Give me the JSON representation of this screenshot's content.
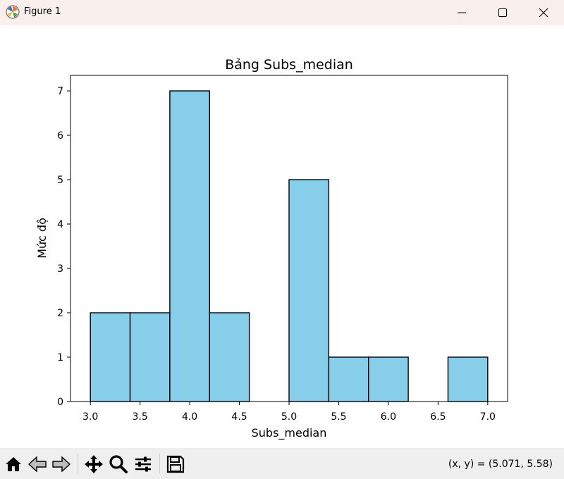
{
  "window": {
    "title": "Figure 1",
    "icons": [
      "matplotlib-logo-icon",
      "minimize-icon",
      "maximize-icon",
      "close-icon"
    ]
  },
  "toolbar": {
    "icons": [
      "home-icon",
      "back-arrow-icon",
      "forward-arrow-icon",
      "pan-icon",
      "zoom-icon",
      "configure-subplots-icon",
      "save-icon"
    ],
    "coords_text": "(x, y) = (5.071, 5.58)"
  },
  "chart_data": {
    "type": "bar",
    "subtype": "histogram",
    "title": "Bảng Subs_median",
    "xlabel": "Subs_median",
    "ylabel": "Mức độ",
    "bin_edges": [
      3.0,
      3.4,
      3.8,
      4.2,
      4.6,
      5.0,
      5.4,
      5.8,
      6.2,
      6.6,
      7.0
    ],
    "values": [
      2,
      2,
      7,
      2,
      0,
      5,
      1,
      1,
      0,
      1
    ],
    "xlim": [
      2.8,
      7.2
    ],
    "ylim": [
      0,
      7.35
    ],
    "xticks": [
      3.0,
      3.5,
      4.0,
      4.5,
      5.0,
      5.5,
      6.0,
      6.5,
      7.0
    ],
    "xtick_labels": [
      "3.0",
      "3.5",
      "4.0",
      "4.5",
      "5.0",
      "5.5",
      "6.0",
      "6.5",
      "7.0"
    ],
    "yticks": [
      0,
      1,
      2,
      3,
      4,
      5,
      6,
      7
    ],
    "ytick_labels": [
      "0",
      "1",
      "2",
      "3",
      "4",
      "5",
      "6",
      "7"
    ],
    "bar_color": "#87ceeb",
    "edge_color": "#000000",
    "grid": false,
    "legend": "none"
  }
}
